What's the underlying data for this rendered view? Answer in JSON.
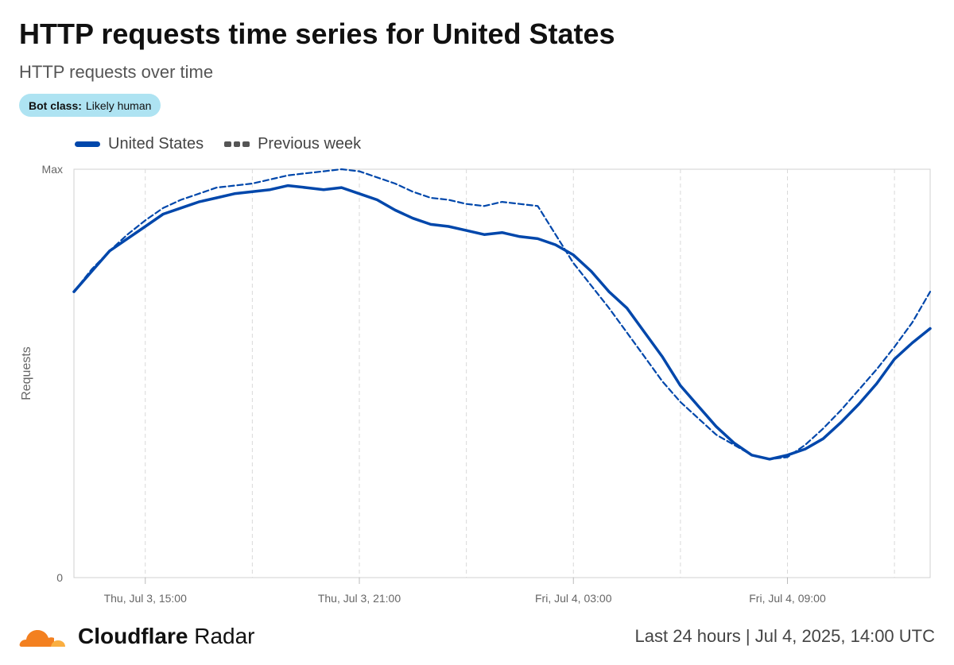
{
  "header": {
    "title": "HTTP requests time series for United States",
    "subtitle": "HTTP requests over time"
  },
  "badge": {
    "key": "Bot class:",
    "value": "Likely human"
  },
  "legend": {
    "series1_label": "United States",
    "series2_label": "Previous week"
  },
  "footer": {
    "brand_bold": "Cloudflare",
    "brand_light": " Radar",
    "meta": "Last 24 hours | Jul 4, 2025, 14:00 UTC"
  },
  "colors": {
    "primary": "#0047ab",
    "grid": "#d9d9d9",
    "badge_bg": "#aee3f2",
    "logo_orange": "#f38020",
    "logo_light": "#faae40"
  },
  "chart_data": {
    "type": "line",
    "ylabel": "Requests",
    "y_tick_labels": [
      "0",
      "Max"
    ],
    "ylim": [
      0,
      1
    ],
    "xlim": [
      12,
      36
    ],
    "x_unit": "hours since Jul 3, 00:00 UTC",
    "x_ticks": [
      {
        "x": 14,
        "label": "Thu, Jul 3, 15:00"
      },
      {
        "x": 20,
        "label": "Thu, Jul 3, 21:00"
      },
      {
        "x": 26,
        "label": "Fri, Jul 4, 03:00"
      },
      {
        "x": 32,
        "label": "Fri, Jul 4, 09:00"
      }
    ],
    "minor_gridlines_x": [
      17,
      23,
      29,
      35
    ],
    "grid": true,
    "legend_position": "top-left",
    "series": [
      {
        "name": "United States",
        "style": "solid",
        "color": "#0047ab",
        "x": [
          12,
          12.5,
          13,
          13.5,
          14,
          14.5,
          15,
          15.5,
          16,
          16.5,
          17,
          17.5,
          18,
          18.5,
          19,
          19.5,
          20,
          20.5,
          21,
          21.5,
          22,
          22.5,
          23,
          23.5,
          24,
          24.5,
          25,
          25.5,
          26,
          26.5,
          27,
          27.5,
          28,
          28.5,
          29,
          29.5,
          30,
          30.5,
          31,
          31.5,
          32,
          32.5,
          33,
          33.5,
          34,
          34.5,
          35,
          35.5,
          36
        ],
        "y": [
          0.7,
          0.75,
          0.8,
          0.83,
          0.86,
          0.89,
          0.905,
          0.92,
          0.93,
          0.94,
          0.945,
          0.95,
          0.96,
          0.955,
          0.95,
          0.955,
          0.94,
          0.925,
          0.9,
          0.88,
          0.865,
          0.86,
          0.85,
          0.84,
          0.845,
          0.835,
          0.83,
          0.815,
          0.79,
          0.75,
          0.7,
          0.66,
          0.6,
          0.54,
          0.47,
          0.42,
          0.37,
          0.33,
          0.3,
          0.29,
          0.3,
          0.315,
          0.34,
          0.38,
          0.425,
          0.475,
          0.535,
          0.575,
          0.61
        ]
      },
      {
        "name": "Previous week",
        "style": "dashed",
        "color": "#0047ab",
        "x": [
          12,
          12.5,
          13,
          13.5,
          14,
          14.5,
          15,
          15.5,
          16,
          16.5,
          17,
          17.5,
          18,
          18.5,
          19,
          19.5,
          20,
          20.5,
          21,
          21.5,
          22,
          22.5,
          23,
          23.5,
          24,
          24.5,
          25,
          25.5,
          26,
          26.5,
          27,
          27.5,
          28,
          28.5,
          29,
          29.5,
          30,
          30.5,
          31,
          31.5,
          32,
          32.5,
          33,
          33.5,
          34,
          34.5,
          35,
          35.5,
          36
        ],
        "y": [
          0.7,
          0.755,
          0.8,
          0.84,
          0.875,
          0.905,
          0.925,
          0.94,
          0.955,
          0.96,
          0.965,
          0.975,
          0.985,
          0.99,
          0.995,
          1.0,
          0.995,
          0.98,
          0.965,
          0.945,
          0.93,
          0.925,
          0.915,
          0.91,
          0.92,
          0.915,
          0.91,
          0.84,
          0.77,
          0.715,
          0.66,
          0.6,
          0.54,
          0.48,
          0.43,
          0.39,
          0.35,
          0.325,
          0.3,
          0.29,
          0.295,
          0.325,
          0.365,
          0.41,
          0.46,
          0.51,
          0.565,
          0.625,
          0.7
        ]
      }
    ]
  }
}
